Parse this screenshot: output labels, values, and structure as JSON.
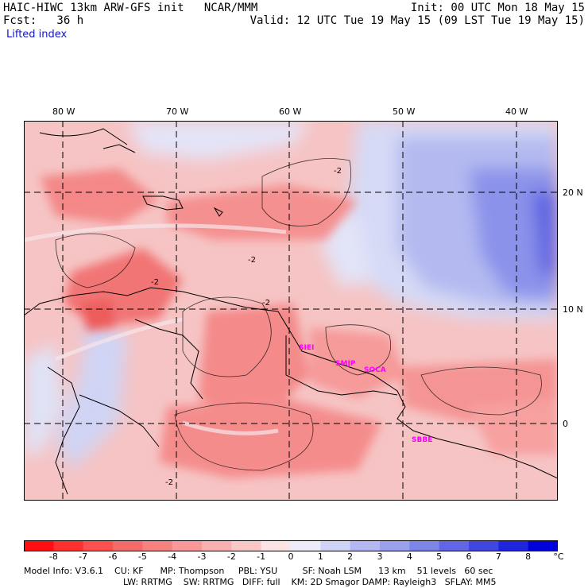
{
  "header": {
    "line1_left": "HAIC-HIWC 13km ARW-GFS init   NCAR/MMM",
    "line1_right": "Init: 00 UTC Mon 18 May 15",
    "line2_left": "Fcst:   36 h",
    "line2_right": "Valid: 12 UTC Tue 19 May 15 (09 LST Tue 19 May 15)"
  },
  "field_name": "Lifted index",
  "map": {
    "longitude_labels": [
      "80 W",
      "70 W",
      "60 W",
      "50 W",
      "40 W"
    ],
    "latitude_labels": [
      "20 N",
      "10 N",
      "0"
    ],
    "contour_labels": [
      "-2",
      "-2",
      "-2",
      "-2",
      "-2"
    ],
    "station_labels": [
      "SIEI",
      "SMJP",
      "SOCA",
      "SBBE"
    ],
    "station_color": "#ff00ff",
    "land_outline_color": "#000000"
  },
  "colorbar": {
    "ticks": [
      "-8",
      "-7",
      "-6",
      "-5",
      "-4",
      "-3",
      "-2",
      "-1",
      "0",
      "1",
      "2",
      "3",
      "4",
      "5",
      "6",
      "7",
      "8"
    ],
    "unit": "°C",
    "colors": [
      "#ff1010",
      "#ff3030",
      "#ff5050",
      "#f56a6a",
      "#f78080",
      "#f89898",
      "#f9b0b0",
      "#fbc8c8",
      "#fde4e4",
      "#ececfa",
      "#d0d4f6",
      "#b4b8f2",
      "#9aa0ee",
      "#7e84ea",
      "#6066e6",
      "#4046e2",
      "#2024de",
      "#0000d8"
    ]
  },
  "footer": {
    "line1": "Model Info: V3.6.1    CU: KF      MP: Thompson     PBL: YSU         SF: Noah LSM      13 km    51 levels   60 sec",
    "line2": "LW: RRTMG    SW: RRTMG   DIFF: full    KM: 2D Smagor DAMP: Rayleigh3   SFLAY: MM5"
  }
}
